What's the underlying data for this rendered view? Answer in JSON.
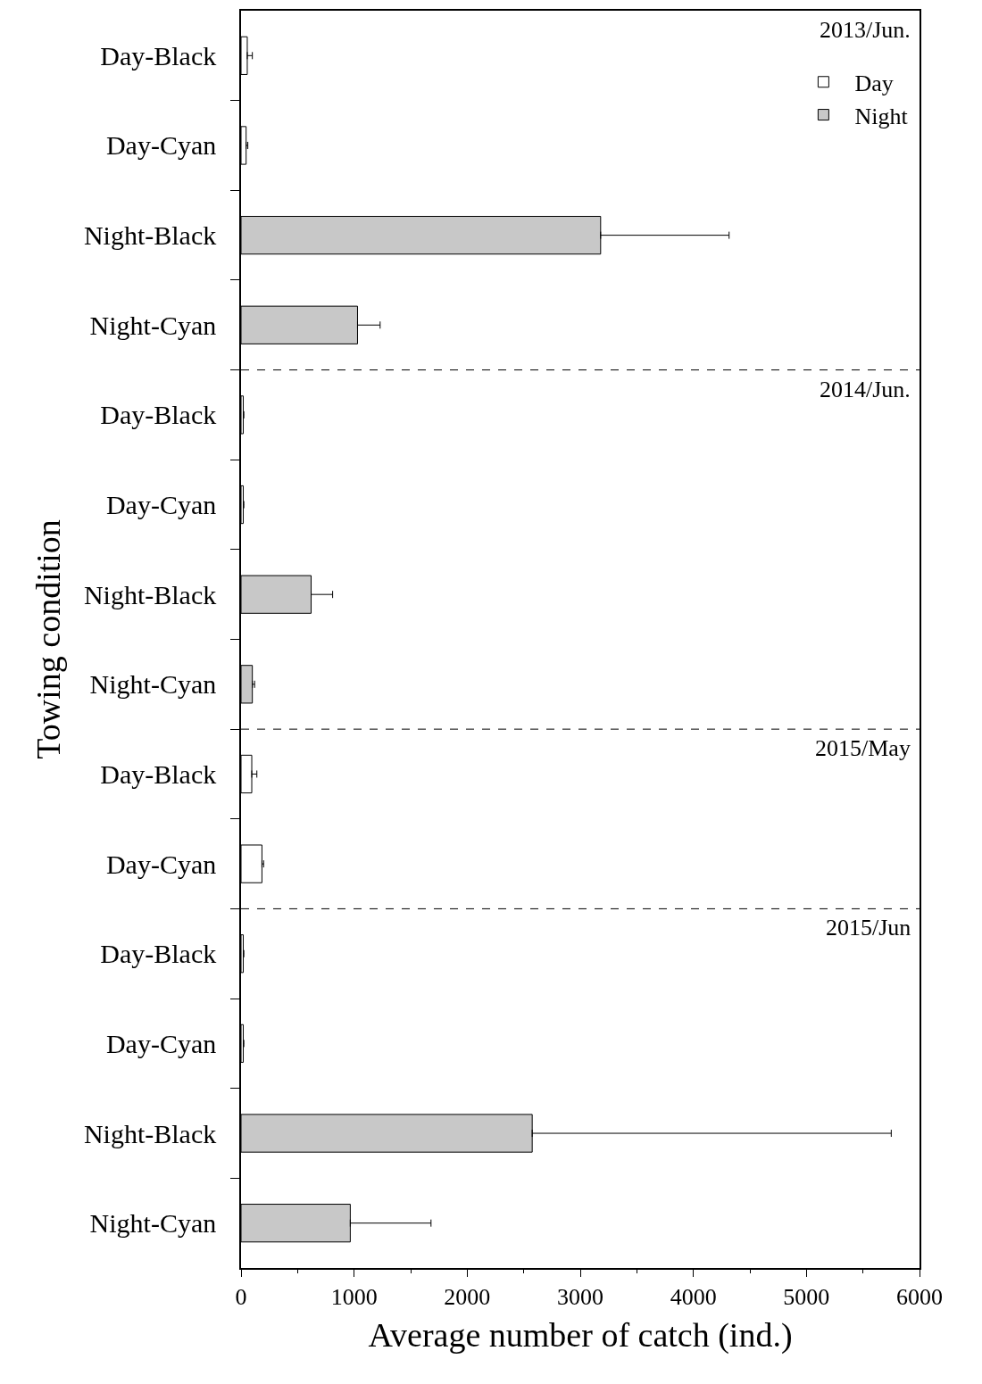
{
  "chart_data": {
    "type": "bar",
    "orientation": "horizontal",
    "xlabel": "Average number of catch (ind.)",
    "ylabel": "Towing condition",
    "categories": [
      "Day-Black",
      "Day-Cyan",
      "Night-Black",
      "Night-Cyan",
      "Day-Black",
      "Day-Cyan",
      "Night-Black",
      "Night-Cyan",
      "Day-Black",
      "Day-Cyan",
      "Day-Black",
      "Day-Cyan",
      "Night-Black",
      "Night-Cyan"
    ],
    "series": [
      {
        "name": "Day",
        "color": "#ffffff",
        "values": [
          55,
          45,
          null,
          null,
          20,
          20,
          null,
          null,
          95,
          185,
          20,
          20,
          null,
          null
        ],
        "errors": [
          [
            55,
            100
          ],
          [
            45,
            60
          ],
          null,
          null,
          [
            20,
            25
          ],
          [
            20,
            25
          ],
          null,
          null,
          [
            95,
            140
          ],
          [
            185,
            200
          ],
          [
            20,
            25
          ],
          [
            20,
            25
          ],
          null,
          null
        ]
      },
      {
        "name": "Night",
        "color": "#c8c8c8",
        "values": [
          null,
          null,
          3180,
          1030,
          null,
          null,
          620,
          100,
          null,
          null,
          null,
          null,
          2575,
          966
        ],
        "errors": [
          null,
          null,
          [
            3180,
            4316
          ],
          [
            1030,
            1230
          ],
          null,
          null,
          [
            620,
            810
          ],
          [
            100,
            120
          ],
          null,
          null,
          null,
          null,
          [
            2575,
            5750
          ],
          [
            966,
            1680
          ]
        ]
      }
    ],
    "xlim": [
      0,
      6000
    ],
    "xticks": [
      0,
      1000,
      2000,
      3000,
      4000,
      5000,
      6000
    ],
    "annotations": [
      "2013/Jun.",
      "2014/Jun.",
      "2015/May",
      "2015/Jun"
    ],
    "legend": "top right"
  }
}
